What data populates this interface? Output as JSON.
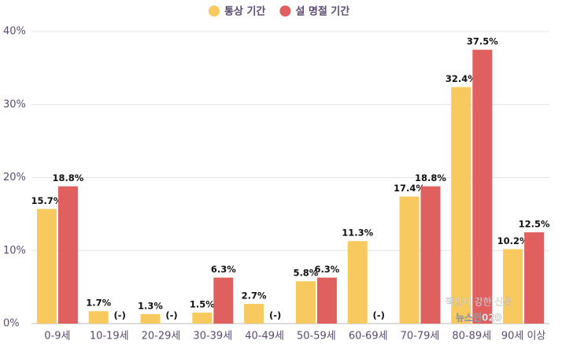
{
  "chart_data": {
    "type": "bar",
    "categories": [
      "0-9세",
      "10-19세",
      "20-29세",
      "30-39세",
      "40-49세",
      "50-59세",
      "60-69세",
      "70-79세",
      "80-89세",
      "90세 이상"
    ],
    "series": [
      {
        "name": "통상 기간",
        "color": "#f8c95e",
        "values": [
          15.7,
          1.7,
          1.3,
          1.5,
          2.7,
          5.8,
          11.3,
          17.4,
          32.4,
          10.2
        ],
        "value_labels": [
          "15.7%",
          "1.7%",
          "1.3%",
          "1.5%",
          "2.7%",
          "5.8%",
          "11.3%",
          "17.4%",
          "32.4%",
          "10.2%"
        ]
      },
      {
        "name": "설 명절 기간",
        "color": "#e0605f",
        "values": [
          18.8,
          null,
          null,
          6.3,
          null,
          6.3,
          null,
          18.8,
          37.5,
          12.5
        ],
        "value_labels": [
          "18.8%",
          "(-)",
          "(-)",
          "6.3%",
          "(-)",
          "6.3%",
          "(-)",
          "18.8%",
          "37.5%",
          "12.5%"
        ]
      }
    ],
    "ylim": [
      0,
      40
    ],
    "yticks": [
      {
        "value": 0,
        "label": "0%"
      },
      {
        "value": 10,
        "label": "10%"
      },
      {
        "value": 20,
        "label": "20%"
      },
      {
        "value": 30,
        "label": "30%"
      },
      {
        "value": 40,
        "label": "40%"
      }
    ],
    "grid": true,
    "legend": "top",
    "watermark": [
      "책임이 강한 신문",
      "뉴스인020"
    ]
  }
}
